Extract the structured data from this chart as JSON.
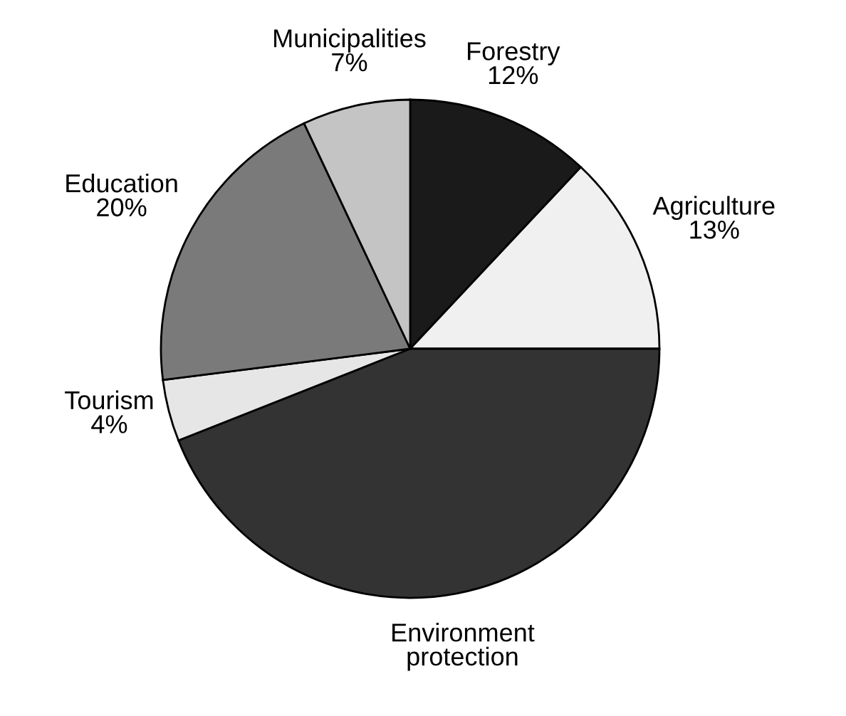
{
  "chart_data": {
    "type": "pie",
    "categories": [
      "Forestry",
      "Agriculture",
      "Environment protection",
      "Tourism",
      "Education",
      "Municipalities"
    ],
    "values": [
      12,
      13,
      44,
      4,
      20,
      7
    ],
    "value_labels": [
      "12%",
      "13%",
      null,
      "4%",
      "20%",
      "7%"
    ],
    "colors": [
      "#1a1a1a",
      "#f0f0f0",
      "#333333",
      "#e6e6e6",
      "#7a7a7a",
      "#c4c4c4"
    ],
    "legend": false
  }
}
